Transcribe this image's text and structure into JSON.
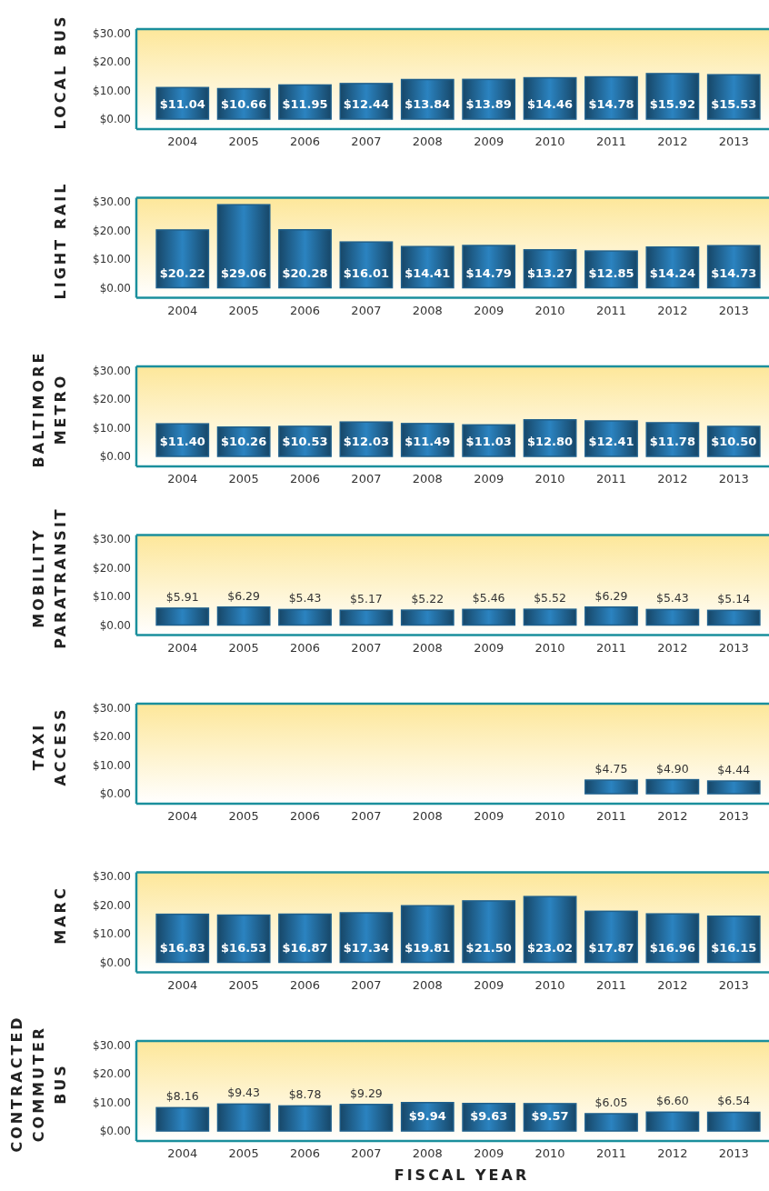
{
  "chart_data": [
    {
      "type": "bar",
      "ylabel": "LOCAL BUS",
      "categories": [
        "2004",
        "2005",
        "2006",
        "2007",
        "2008",
        "2009",
        "2010",
        "2011",
        "2012",
        "2013"
      ],
      "values": [
        11.04,
        10.66,
        11.95,
        12.44,
        13.84,
        13.89,
        14.46,
        14.78,
        15.92,
        15.53
      ],
      "value_labels": [
        "$11.04",
        "$10.66",
        "$11.95",
        "$12.44",
        "$13.84",
        "$13.89",
        "$14.46",
        "$14.78",
        "$15.92",
        "$15.53"
      ],
      "color": "#1f5f8b",
      "ylim": [
        -3.5,
        31.5
      ],
      "yticks": [
        {
          "value": 0,
          "label": "$0.00"
        },
        {
          "value": 10,
          "label": "$10.00"
        },
        {
          "value": 20,
          "label": "$20.00"
        },
        {
          "value": 30,
          "label": "$30.00"
        }
      ],
      "grid": false
    },
    {
      "type": "bar",
      "ylabel": "LIGHT RAIL",
      "categories": [
        "2004",
        "2005",
        "2006",
        "2007",
        "2008",
        "2009",
        "2010",
        "2011",
        "2012",
        "2013"
      ],
      "values": [
        20.22,
        29.06,
        20.28,
        16.01,
        14.41,
        14.79,
        13.27,
        12.85,
        14.24,
        14.73
      ],
      "value_labels": [
        "$20.22",
        "$29.06",
        "$20.28",
        "$16.01",
        "$14.41",
        "$14.79",
        "$13.27",
        "$12.85",
        "$14.24",
        "$14.73"
      ],
      "color": "#1f5f8b",
      "ylim": [
        -3.5,
        31.5
      ],
      "yticks": [
        {
          "value": 0,
          "label": "$0.00"
        },
        {
          "value": 10,
          "label": "$10.00"
        },
        {
          "value": 20,
          "label": "$20.00"
        },
        {
          "value": 30,
          "label": "$30.00"
        }
      ],
      "grid": false
    },
    {
      "type": "bar",
      "ylabel": "BALTIMORE\nMETRO",
      "categories": [
        "2004",
        "2005",
        "2006",
        "2007",
        "2008",
        "2009",
        "2010",
        "2011",
        "2012",
        "2013"
      ],
      "values": [
        11.4,
        10.26,
        10.53,
        12.03,
        11.49,
        11.03,
        12.8,
        12.41,
        11.78,
        10.5
      ],
      "value_labels": [
        "$11.40",
        "$10.26",
        "$10.53",
        "$12.03",
        "$11.49",
        "$11.03",
        "$12.80",
        "$12.41",
        "$11.78",
        "$10.50"
      ],
      "color": "#1f5f8b",
      "ylim": [
        -3.5,
        31.5
      ],
      "yticks": [
        {
          "value": 0,
          "label": "$0.00"
        },
        {
          "value": 10,
          "label": "$10.00"
        },
        {
          "value": 20,
          "label": "$20.00"
        },
        {
          "value": 30,
          "label": "$30.00"
        }
      ],
      "grid": false
    },
    {
      "type": "bar",
      "ylabel": "MOBILITY\nPARATRANSIT",
      "categories": [
        "2004",
        "2005",
        "2006",
        "2007",
        "2008",
        "2009",
        "2010",
        "2011",
        "2012",
        "2013"
      ],
      "values": [
        5.91,
        6.29,
        5.43,
        5.17,
        5.22,
        5.46,
        5.52,
        6.29,
        5.43,
        5.14
      ],
      "value_labels": [
        "$5.91",
        "$6.29",
        "$5.43",
        "$5.17",
        "$5.22",
        "$5.46",
        "$5.52",
        "$6.29",
        "$5.43",
        "$5.14"
      ],
      "color": "#1f5f8b",
      "ylim": [
        -3.5,
        31.5
      ],
      "yticks": [
        {
          "value": 0,
          "label": "$0.00"
        },
        {
          "value": 10,
          "label": "$10.00"
        },
        {
          "value": 20,
          "label": "$20.00"
        },
        {
          "value": 30,
          "label": "$30.00"
        }
      ],
      "grid": false
    },
    {
      "type": "bar",
      "ylabel": "TAXI\nACCESS",
      "categories": [
        "2004",
        "2005",
        "2006",
        "2007",
        "2008",
        "2009",
        "2010",
        "2011",
        "2012",
        "2013"
      ],
      "values": [
        null,
        null,
        null,
        null,
        null,
        null,
        null,
        4.75,
        4.9,
        4.44
      ],
      "value_labels": [
        null,
        null,
        null,
        null,
        null,
        null,
        null,
        "$4.75",
        "$4.90",
        "$4.44"
      ],
      "color": "#1f5f8b",
      "ylim": [
        -3.5,
        31.5
      ],
      "yticks": [
        {
          "value": 0,
          "label": "$0.00"
        },
        {
          "value": 10,
          "label": "$10.00"
        },
        {
          "value": 20,
          "label": "$20.00"
        },
        {
          "value": 30,
          "label": "$30.00"
        }
      ],
      "grid": false
    },
    {
      "type": "bar",
      "ylabel": "MARC",
      "categories": [
        "2004",
        "2005",
        "2006",
        "2007",
        "2008",
        "2009",
        "2010",
        "2011",
        "2012",
        "2013"
      ],
      "values": [
        16.83,
        16.53,
        16.87,
        17.34,
        19.81,
        21.5,
        23.02,
        17.87,
        16.96,
        16.15
      ],
      "value_labels": [
        "$16.83",
        "$16.53",
        "$16.87",
        "$17.34",
        "$19.81",
        "$21.50",
        "$23.02",
        "$17.87",
        "$16.96",
        "$16.15"
      ],
      "color": "#1f5f8b",
      "ylim": [
        -3.5,
        31.5
      ],
      "yticks": [
        {
          "value": 0,
          "label": "$0.00"
        },
        {
          "value": 10,
          "label": "$10.00"
        },
        {
          "value": 20,
          "label": "$20.00"
        },
        {
          "value": 30,
          "label": "$30.00"
        }
      ],
      "grid": false
    },
    {
      "type": "bar",
      "ylabel": "CONTRACTED\nCOMMUTER\nBUS",
      "xlabel": "FISCAL YEAR",
      "categories": [
        "2004",
        "2005",
        "2006",
        "2007",
        "2008",
        "2009",
        "2010",
        "2011",
        "2012",
        "2013"
      ],
      "values": [
        8.16,
        9.43,
        8.78,
        9.29,
        9.94,
        9.63,
        9.57,
        6.05,
        6.6,
        6.54
      ],
      "value_labels": [
        "$8.16",
        "$9.43",
        "$8.78",
        "$9.29",
        "$9.94",
        "$9.63",
        "$9.57",
        "$6.05",
        "$6.60",
        "$6.54"
      ],
      "color": "#1f5f8b",
      "ylim": [
        -3.5,
        31.5
      ],
      "yticks": [
        {
          "value": 0,
          "label": "$0.00"
        },
        {
          "value": 10,
          "label": "$10.00"
        },
        {
          "value": 20,
          "label": "$20.00"
        },
        {
          "value": 30,
          "label": "$30.00"
        }
      ],
      "grid": false
    }
  ]
}
